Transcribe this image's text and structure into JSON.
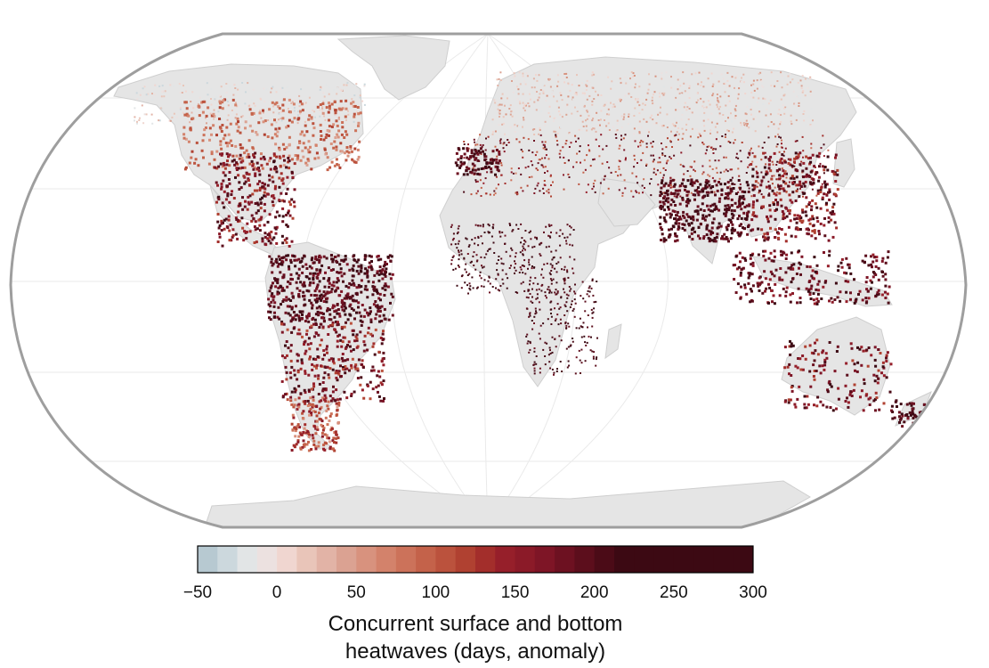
{
  "legend": {
    "title_line1": "Concurrent surface and bottom",
    "title_line2": "heatwaves (days, anomaly)",
    "tick_labels": [
      "−50",
      "0",
      "50",
      "100",
      "150",
      "200",
      "250",
      "300"
    ],
    "range": [
      -50,
      300
    ],
    "bin_width": 12.5,
    "colors": [
      "#b7c9d1",
      "#ccd8dd",
      "#e2e5e6",
      "#ece1e0",
      "#f0d6d0",
      "#e9c5b9",
      "#e2b3a6",
      "#dba292",
      "#d8927e",
      "#d3826b",
      "#cc725a",
      "#c4624a",
      "#bb523d",
      "#b04131",
      "#a32e2b",
      "#961f2a",
      "#8b1a28",
      "#7e1526",
      "#6d1121",
      "#5c0e1c",
      "#4b0b17",
      "#3c0913"
    ]
  },
  "map": {
    "land_color": "#e5e5e5",
    "land_edge": "#cfcfcf",
    "ocean_color": "#ffffff",
    "graticule_color": "#eaeaea",
    "frame_color": "#9e9e9e"
  }
}
